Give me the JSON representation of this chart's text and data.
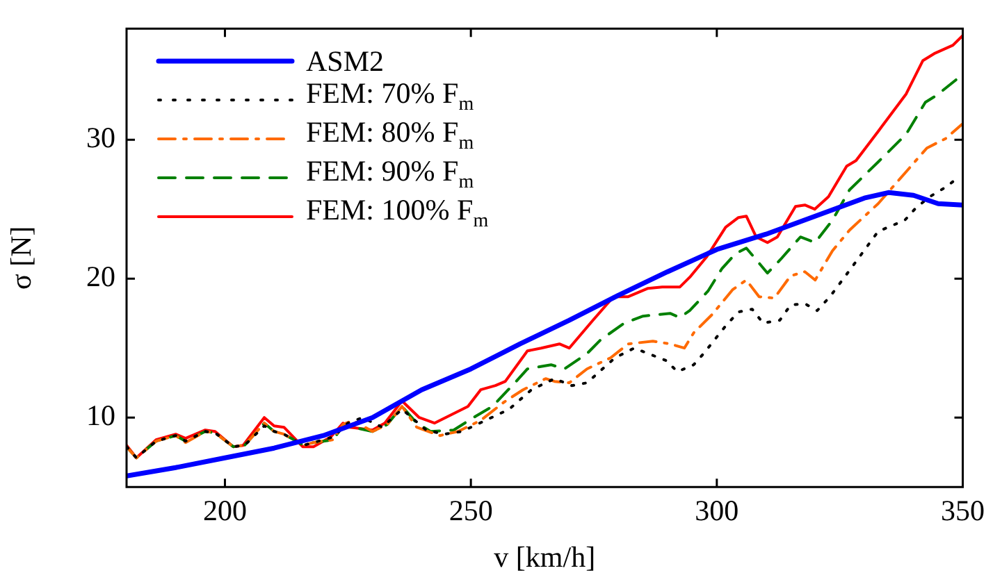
{
  "chart_data": {
    "type": "line",
    "xlabel": "v [km/h]",
    "ylabel": "σ [N]",
    "xlim": [
      180,
      350
    ],
    "xticks": [
      200,
      250,
      300,
      350
    ],
    "ylim": [
      5,
      38
    ],
    "yticks": [
      10,
      20,
      30
    ],
    "grid": false,
    "legend": "top left",
    "marker": "none",
    "series": [
      {
        "name": "ASM2",
        "color": "#0000ff",
        "line_style": "solid",
        "x": [
          180,
          190,
          200,
          210,
          220,
          230,
          240,
          250,
          260,
          270,
          280,
          290,
          300,
          310,
          320,
          330,
          335,
          340,
          345,
          350
        ],
        "values": [
          5.8,
          6.4,
          7.1,
          7.8,
          8.7,
          10.0,
          12.0,
          13.5,
          15.3,
          17.0,
          18.8,
          20.5,
          22.1,
          23.2,
          24.5,
          25.8,
          26.2,
          26.0,
          25.4,
          25.3
        ]
      },
      {
        "name": "FEM: 70% F$_{m}$",
        "color": "#000000",
        "line_style": "dotted",
        "x": [
          180,
          182,
          186,
          190,
          192,
          196,
          198,
          201.7,
          204,
          208,
          210,
          212,
          216,
          218,
          222,
          225,
          228,
          232,
          236,
          240.9,
          244.6,
          248.2,
          253,
          257.8,
          262.3,
          267,
          270.5,
          273.6,
          279.3,
          283.2,
          289.7,
          292,
          295.3,
          297.3,
          301.8,
          304.4,
          307.2,
          309.4,
          312.8,
          315,
          317.9,
          320.4,
          323,
          327.2,
          332.8,
          338.2,
          340.5,
          343.3,
          346.6,
          349.5
        ],
        "values": [
          7.9,
          7.1,
          8.3,
          8.7,
          8.3,
          9.0,
          8.9,
          7.9,
          8.0,
          9.4,
          9.0,
          8.8,
          8.0,
          8.2,
          8.6,
          9.6,
          10.0,
          9.3,
          10.6,
          9.1,
          8.8,
          9.0,
          9.8,
          10.6,
          12.0,
          12.8,
          12.3,
          12.5,
          14.3,
          15.0,
          14.1,
          13.3,
          13.8,
          14.6,
          16.6,
          17.6,
          17.8,
          16.8,
          17.0,
          18.1,
          18.2,
          17.7,
          18.7,
          20.7,
          23.4,
          24.2,
          25.1,
          25.9,
          26.6,
          27.4
        ]
      },
      {
        "name": "FEM: 80% F$_{m}$",
        "color": "#ff6a00",
        "line_style": "dashdot",
        "x": [
          180,
          182,
          186,
          190,
          192,
          196,
          198,
          201.7,
          204,
          208,
          210,
          212,
          216,
          218,
          222,
          224,
          226,
          230,
          233,
          236,
          239,
          243.7,
          247.4,
          252,
          256.7,
          260.6,
          265.2,
          267,
          270,
          273.6,
          278.4,
          282,
          287,
          290.5,
          293.4,
          295.3,
          299,
          303.2,
          306,
          308.6,
          311.7,
          315,
          317.9,
          320,
          323.5,
          327,
          332.8,
          338.5,
          342.7,
          346.6,
          349.8
        ],
        "values": [
          7.9,
          7.1,
          8.3,
          8.7,
          8.2,
          9.0,
          8.9,
          7.9,
          8.0,
          9.6,
          9.0,
          8.8,
          8.0,
          8.2,
          8.4,
          9.5,
          9.8,
          9.0,
          9.5,
          10.8,
          9.3,
          8.7,
          9.0,
          9.8,
          11.1,
          12.0,
          12.8,
          12.6,
          12.5,
          13.5,
          14.3,
          15.3,
          15.5,
          15.3,
          15.0,
          16.1,
          17.4,
          19.2,
          19.9,
          18.7,
          18.6,
          20.2,
          20.5,
          19.9,
          22.0,
          23.5,
          25.4,
          27.7,
          29.4,
          30.1,
          31.1
        ]
      },
      {
        "name": "FEM: 90% F$_{m}$",
        "color": "#008000",
        "line_style": "dashed",
        "x": [
          180,
          182,
          186,
          190,
          192,
          196,
          198,
          201.7,
          204,
          208,
          210,
          212,
          216,
          218,
          222,
          224,
          226,
          230,
          233,
          236,
          239,
          241.8,
          246.5,
          251,
          254.4,
          259.2,
          261.5,
          266.3,
          269,
          273.6,
          276.4,
          281.2,
          285,
          290.5,
          292.5,
          294.5,
          298.2,
          301,
          303.8,
          306,
          307.2,
          310.3,
          313,
          317,
          320,
          323.5,
          327,
          332.8,
          338.5,
          342.4,
          344.7,
          350
        ],
        "values": [
          7.9,
          7.1,
          8.3,
          8.7,
          8.3,
          9.0,
          8.9,
          7.9,
          8.0,
          9.6,
          9.0,
          8.8,
          8.0,
          8.2,
          8.4,
          9.4,
          9.3,
          9.0,
          9.5,
          10.8,
          9.6,
          9.0,
          9.1,
          10.1,
          10.8,
          12.6,
          13.5,
          13.8,
          13.5,
          14.6,
          15.6,
          16.8,
          17.3,
          17.5,
          17.2,
          17.7,
          19.1,
          20.7,
          21.8,
          22.2,
          21.7,
          20.4,
          21.4,
          23.0,
          22.6,
          24.2,
          26.4,
          28.4,
          30.4,
          32.7,
          33.2,
          34.7
        ]
      },
      {
        "name": "FEM: 100% F$_{m}$",
        "color": "#ff0000",
        "line_style": "solid",
        "x": [
          180,
          182,
          186,
          190,
          192,
          196,
          198,
          201.7,
          203.7,
          208,
          210,
          212,
          215.8,
          218,
          221.5,
          224,
          225.4,
          230,
          232.5,
          236,
          239.5,
          242.6,
          249.4,
          252,
          255,
          257,
          261.5,
          264.3,
          268,
          270,
          274.8,
          279,
          282,
          286,
          288.9,
          292.5,
          294.5,
          298,
          301.8,
          304.4,
          306,
          308,
          310.3,
          312.3,
          316,
          317.9,
          319.9,
          322.7,
          326.4,
          328.3,
          332.8,
          338.5,
          341.9,
          344.2,
          348,
          350
        ],
        "values": [
          8.0,
          7.1,
          8.4,
          8.8,
          8.5,
          9.1,
          9.0,
          7.9,
          8.0,
          10.0,
          9.4,
          9.3,
          7.9,
          7.9,
          8.6,
          9.6,
          9.3,
          9.1,
          9.6,
          11.2,
          10.0,
          9.6,
          10.8,
          12.0,
          12.3,
          12.6,
          14.8,
          15.0,
          15.3,
          15.0,
          17.0,
          18.7,
          18.7,
          19.3,
          19.4,
          19.4,
          20.1,
          21.6,
          23.7,
          24.4,
          24.5,
          23.0,
          22.6,
          23.0,
          25.2,
          25.3,
          25.0,
          25.9,
          28.1,
          28.5,
          30.6,
          33.3,
          35.7,
          36.2,
          36.8,
          37.5
        ]
      }
    ]
  }
}
